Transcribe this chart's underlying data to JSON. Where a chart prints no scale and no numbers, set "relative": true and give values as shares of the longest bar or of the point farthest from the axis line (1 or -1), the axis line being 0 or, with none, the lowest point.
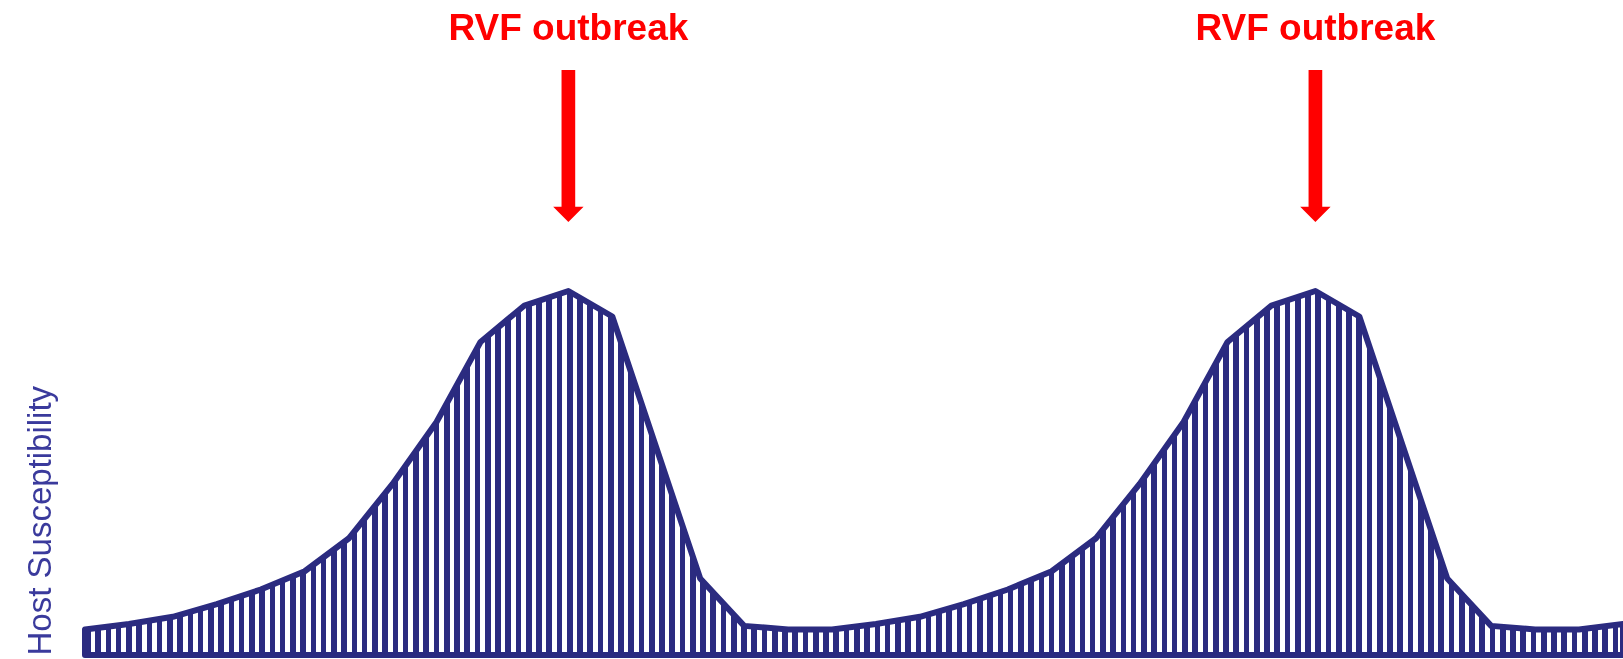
{
  "chart_data": {
    "type": "area",
    "relative": true,
    "ylabel": "Host Susceptibility",
    "color": "#2b2b80",
    "categories": [
      null,
      null,
      null,
      null,
      null,
      null,
      null,
      null,
      null,
      null,
      null,
      null,
      null,
      null,
      null,
      null,
      null,
      null,
      null,
      null,
      null,
      null,
      null,
      null,
      null,
      null,
      null,
      null,
      null,
      null,
      null,
      null,
      null,
      null,
      null,
      null
    ],
    "values": [
      0.07,
      0.085,
      0.105,
      0.14,
      0.18,
      0.23,
      0.32,
      0.47,
      0.64,
      0.86,
      0.96,
      1,
      0.93,
      0.57,
      0.21,
      0.08,
      0.07,
      0.07,
      0.085,
      0.105,
      0.14,
      0.18,
      0.23,
      0.32,
      0.47,
      0.64,
      0.86,
      0.96,
      1,
      0.93,
      0.57,
      0.21,
      0.08,
      0.07,
      0.07,
      0.085
    ],
    "annotations": [
      "RVF outbreak",
      "RVF outbreak"
    ],
    "grid": false
  }
}
